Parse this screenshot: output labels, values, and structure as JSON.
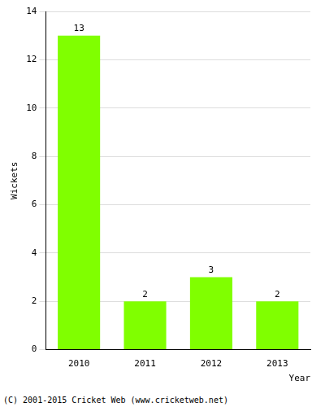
{
  "chart_data": {
    "type": "bar",
    "categories": [
      "2010",
      "2011",
      "2012",
      "2013"
    ],
    "values": [
      13,
      2,
      3,
      2
    ],
    "color": "#80ff00",
    "x_label": "Year",
    "y_label": "Wickets",
    "ylim": [
      0,
      14
    ],
    "yticks": [
      0,
      2,
      4,
      6,
      8,
      10,
      12,
      14
    ],
    "grid": true,
    "data_labels": true,
    "annotations": [
      "(C) 2001-2015 Cricket Web (www.cricketweb.net)"
    ]
  }
}
